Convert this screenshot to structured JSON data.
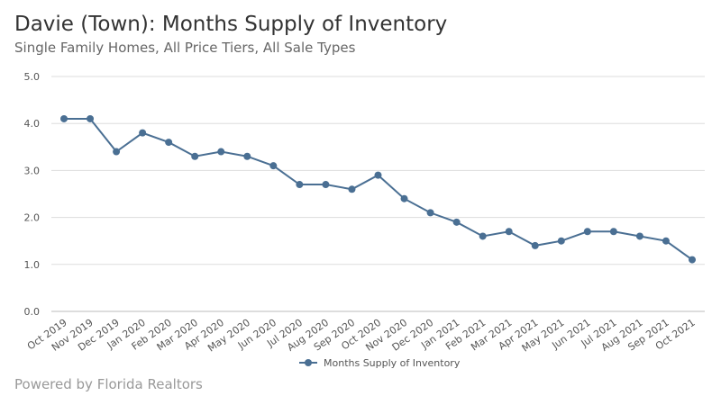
{
  "chart_data": {
    "type": "line",
    "title": "Davie (Town): Months Supply of Inventory",
    "subtitle": "Single Family Homes, All Price Tiers, All Sale Types",
    "categories": [
      "Oct 2019",
      "Nov 2019",
      "Dec 2019",
      "Jan 2020",
      "Feb 2020",
      "Mar 2020",
      "Apr 2020",
      "May 2020",
      "Jun 2020",
      "Jul 2020",
      "Aug 2020",
      "Sep 2020",
      "Oct 2020",
      "Nov 2020",
      "Dec 2020",
      "Jan 2021",
      "Feb 2021",
      "Mar 2021",
      "Apr 2021",
      "May 2021",
      "Jun 2021",
      "Jul 2021",
      "Aug 2021",
      "Sep 2021",
      "Oct 2021"
    ],
    "series": [
      {
        "name": "Months Supply of Inventory",
        "color": "#4a6f93",
        "values": [
          4.1,
          4.1,
          3.4,
          3.8,
          3.6,
          3.3,
          3.4,
          3.3,
          3.1,
          2.7,
          2.7,
          2.6,
          2.9,
          2.4,
          2.1,
          1.9,
          1.6,
          1.7,
          1.4,
          1.5,
          1.7,
          1.7,
          1.6,
          1.5,
          1.1
        ]
      }
    ],
    "ylim": [
      0,
      5
    ],
    "yticks": [
      "0.0",
      "1.0",
      "2.0",
      "3.0",
      "4.0",
      "5.0"
    ],
    "grid": true,
    "legend": "bottom"
  },
  "footer": "Powered by Florida Realtors"
}
